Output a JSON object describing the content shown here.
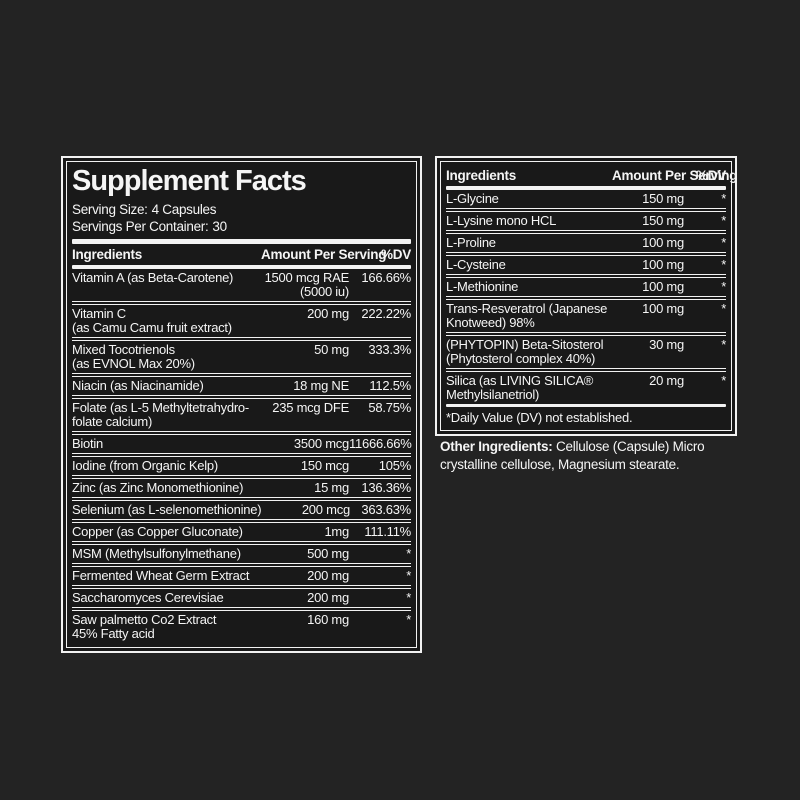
{
  "colors": {
    "background": "#232323",
    "panel_background": "#191919",
    "rule": "#f2f2f2",
    "text": "#f5f5f5"
  },
  "supplement_facts": {
    "title": "Supplement Facts",
    "serving_size": {
      "label": "Serving Size:",
      "value": "4 Capsules"
    },
    "servings_per_container": {
      "label": "Servings Per Container:",
      "value": "30"
    },
    "columns": {
      "ingredients": "Ingredients",
      "amount_per_serving": "Amount Per Serving",
      "dv": "%DV"
    }
  },
  "left_table": {
    "rows": [
      {
        "name": "Vitamin A (as Beta-Carotene)",
        "amount": "1500 mcg RAE\n(5000 iu)",
        "dv": "166.66%"
      },
      {
        "name": "Vitamin C\n(as Camu Camu fruit extract)",
        "amount": "200 mg",
        "dv": "222.22%"
      },
      {
        "name": "Mixed Tocotrienols\n(as EVNOL Max 20%)",
        "amount": "50 mg",
        "dv": "333.3%"
      },
      {
        "name": "Niacin (as Niacinamide)",
        "amount": "18 mg NE",
        "dv": "112.5%"
      },
      {
        "name": "Folate (as L-5 Methyltetrahydro-\nfolate calcium)",
        "amount": "235 mcg DFE",
        "dv": "58.75%"
      },
      {
        "name": "Biotin",
        "amount": "3500 mcg",
        "dv": "11666.66%"
      },
      {
        "name": "Iodine (from Organic Kelp)",
        "amount": "150 mcg",
        "dv": "105%"
      },
      {
        "name": "Zinc (as Zinc Monomethionine)",
        "amount": "15 mg",
        "dv": "136.36%"
      },
      {
        "name": "Selenium (as L-selenomethionine)",
        "amount": "200 mcg",
        "dv": "363.63%"
      },
      {
        "name": "Copper (as Copper Gluconate)",
        "amount": "1mg",
        "dv": "111.11%"
      },
      {
        "name": "MSM (Methylsulfonylmethane)",
        "amount": "500 mg",
        "dv": "*"
      },
      {
        "name": "Fermented Wheat Germ Extract",
        "amount": "200 mg",
        "dv": "*"
      },
      {
        "name": "Saccharomyces Cerevisiae",
        "amount": "200 mg",
        "dv": "*"
      },
      {
        "name": "Saw palmetto Co2 Extract\n45% Fatty acid",
        "amount": "160 mg",
        "dv": "*"
      }
    ]
  },
  "right_table": {
    "rows": [
      {
        "name": "L-Glycine",
        "amount": "150 mg",
        "dv": "*"
      },
      {
        "name": "L-Lysine mono HCL",
        "amount": "150 mg",
        "dv": "*"
      },
      {
        "name": "L-Proline",
        "amount": "100 mg",
        "dv": "*"
      },
      {
        "name": "L-Cysteine",
        "amount": "100 mg",
        "dv": "*"
      },
      {
        "name": "L-Methionine",
        "amount": "100 mg",
        "dv": "*"
      },
      {
        "name": "Trans-Resveratrol (Japanese\nKnotweed) 98%",
        "amount": "100 mg",
        "dv": "*"
      },
      {
        "name": "(PHYTOPIN) Beta-Sitosterol\n(Phytosterol complex 40%)",
        "amount": "30 mg",
        "dv": "*"
      },
      {
        "name": "Silica (as LIVING SILICA®\nMethylsilanetriol)",
        "amount": "20 mg",
        "dv": "*"
      }
    ],
    "footnote": "*Daily Value (DV) not established."
  },
  "other_ingredients": {
    "label": "Other Ingredients:",
    "text": "Cellulose (Capsule) Micro crystalline cellulose, Magnesium stearate."
  }
}
